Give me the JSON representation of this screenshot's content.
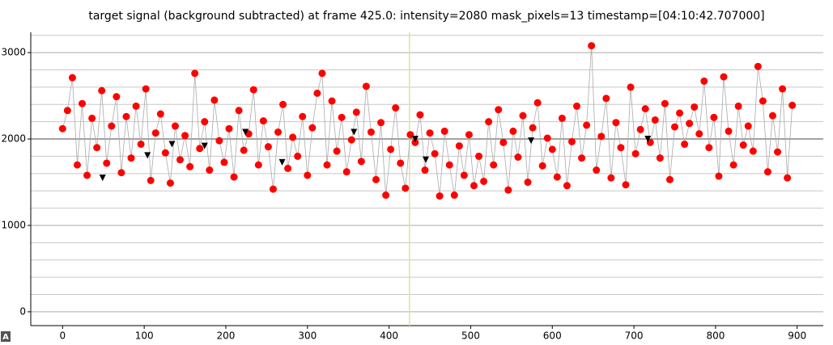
{
  "chart_data": {
    "type": "scatter",
    "title": "target signal (background subtracted) at frame 425.0: intensity=2080 mask_pixels=13 timestamp=[04:10:42.707000]",
    "xlim": [
      -39,
      932
    ],
    "ylim": [
      -160,
      3235
    ],
    "xticks": [
      0,
      100,
      200,
      300,
      400,
      500,
      600,
      700,
      800,
      900
    ],
    "yticks": [
      0,
      1000,
      2000,
      3000
    ],
    "y_minor_ticks": [
      200,
      400,
      600,
      800,
      1200,
      1400,
      1600,
      1800,
      2200,
      2400,
      2600,
      2800,
      3200
    ],
    "grid": true,
    "cursor_x": 425,
    "cursor_color": "#e0e0a0",
    "reference_y": 2000,
    "series": [
      {
        "color": "#ff0000",
        "marker": "circle",
        "connect": true,
        "x": [
          0,
          6,
          12,
          18,
          24,
          30,
          36,
          42,
          48,
          54,
          60,
          66,
          72,
          78,
          84,
          90,
          96,
          102,
          108,
          114,
          120,
          126,
          132,
          138,
          144,
          150,
          156,
          162,
          168,
          174,
          180,
          186,
          192,
          198,
          204,
          210,
          216,
          222,
          228,
          234,
          240,
          246,
          252,
          258,
          264,
          270,
          276,
          282,
          288,
          294,
          300,
          306,
          312,
          318,
          324,
          330,
          336,
          342,
          348,
          354,
          360,
          366,
          372,
          378,
          384,
          390,
          396,
          402,
          408,
          414,
          420,
          426,
          432,
          438,
          444,
          450,
          456,
          462,
          468,
          474,
          480,
          486,
          492,
          498,
          504,
          510,
          516,
          522,
          528,
          534,
          540,
          546,
          552,
          558,
          564,
          570,
          576,
          582,
          588,
          594,
          600,
          606,
          612,
          618,
          624,
          630,
          636,
          642,
          648,
          654,
          660,
          666,
          672,
          678,
          684,
          690,
          696,
          702,
          708,
          714,
          720,
          726,
          732,
          738,
          744,
          750,
          756,
          762,
          768,
          774,
          780,
          786,
          792,
          798,
          804,
          810,
          816,
          822,
          828,
          834,
          840,
          846,
          852,
          858,
          864,
          870,
          876,
          882,
          888,
          894
        ],
        "values": [
          2120,
          2330,
          2710,
          1700,
          2410,
          1580,
          2240,
          1900,
          2560,
          1720,
          2150,
          2490,
          1610,
          2260,
          1780,
          2380,
          1940,
          2580,
          1520,
          2070,
          2290,
          1840,
          1490,
          2150,
          1760,
          2040,
          1680,
          2760,
          1890,
          2200,
          1640,
          2450,
          1980,
          1730,
          2120,
          1560,
          2330,
          1870,
          2060,
          2570,
          1700,
          2210,
          1910,
          1420,
          2080,
          2400,
          1660,
          2020,
          1800,
          2260,
          1580,
          2130,
          2530,
          2760,
          1700,
          2440,
          1860,
          2250,
          1620,
          1990,
          2310,
          1740,
          2610,
          2080,
          1530,
          2190,
          1350,
          1880,
          2360,
          1720,
          1430,
          2050,
          1960,
          2280,
          1640,
          2070,
          1830,
          1340,
          2090,
          1700,
          1350,
          1920,
          1580,
          2050,
          1460,
          1800,
          1510,
          2200,
          1700,
          2340,
          1960,
          1410,
          2090,
          1790,
          2270,
          1500,
          2130,
          2420,
          1690,
          2010,
          1880,
          1560,
          2240,
          1460,
          1970,
          2380,
          1780,
          2160,
          3080,
          1640,
          2030,
          2470,
          1550,
          2190,
          1900,
          1470,
          2600,
          1830,
          2110,
          2350,
          1960,
          2220,
          1780,
          2410,
          1530,
          2140,
          2300,
          1940,
          2180,
          2370,
          2060,
          2670,
          1900,
          2250,
          1570,
          2720,
          2090,
          1700,
          2380,
          1930,
          2150,
          1860,
          2840,
          2440,
          1620,
          2270,
          1850,
          2580,
          1550,
          2390
        ]
      },
      {
        "color": "#000000",
        "marker": "triangle-down",
        "connect": false,
        "x": [
          49,
          104,
          134,
          174,
          224,
          269,
          357,
          432,
          445,
          574,
          717
        ],
        "values": [
          1550,
          1810,
          1940,
          1920,
          2080,
          1730,
          2080,
          2000,
          1760,
          1980,
          2000
        ]
      }
    ]
  },
  "corner_icon": "A"
}
